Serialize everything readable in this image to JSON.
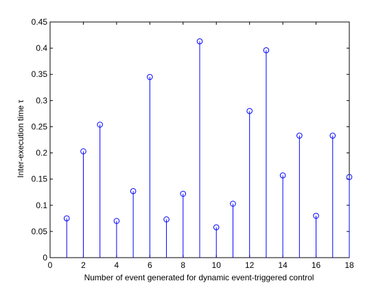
{
  "chart_data": {
    "type": "stem",
    "xlabel": "Number of event generated for dynamic event-triggered control",
    "ylabel": "Inter-execution time τ",
    "xlim": [
      0,
      18
    ],
    "ylim": [
      0,
      0.45
    ],
    "xticks": [
      0,
      2,
      4,
      6,
      8,
      10,
      12,
      14,
      16,
      18
    ],
    "yticks": [
      0,
      0.05,
      0.1,
      0.15,
      0.2,
      0.25,
      0.3,
      0.35,
      0.4,
      0.45
    ],
    "xtick_labels": [
      "0",
      "2",
      "4",
      "6",
      "8",
      "10",
      "12",
      "14",
      "16",
      "18"
    ],
    "ytick_labels": [
      "0",
      "0.05",
      "0.1",
      "0.15",
      "0.2",
      "0.25",
      "0.3",
      "0.35",
      "0.4",
      "0.45"
    ],
    "grid": false,
    "marker": "circle",
    "color": "#0000ff",
    "x": [
      1,
      2,
      3,
      4,
      5,
      6,
      7,
      8,
      9,
      10,
      11,
      12,
      13,
      14,
      15,
      16,
      17,
      18
    ],
    "y": [
      0.075,
      0.203,
      0.254,
      0.07,
      0.127,
      0.345,
      0.073,
      0.122,
      0.413,
      0.058,
      0.103,
      0.28,
      0.396,
      0.157,
      0.233,
      0.08,
      0.233,
      0.154
    ]
  }
}
